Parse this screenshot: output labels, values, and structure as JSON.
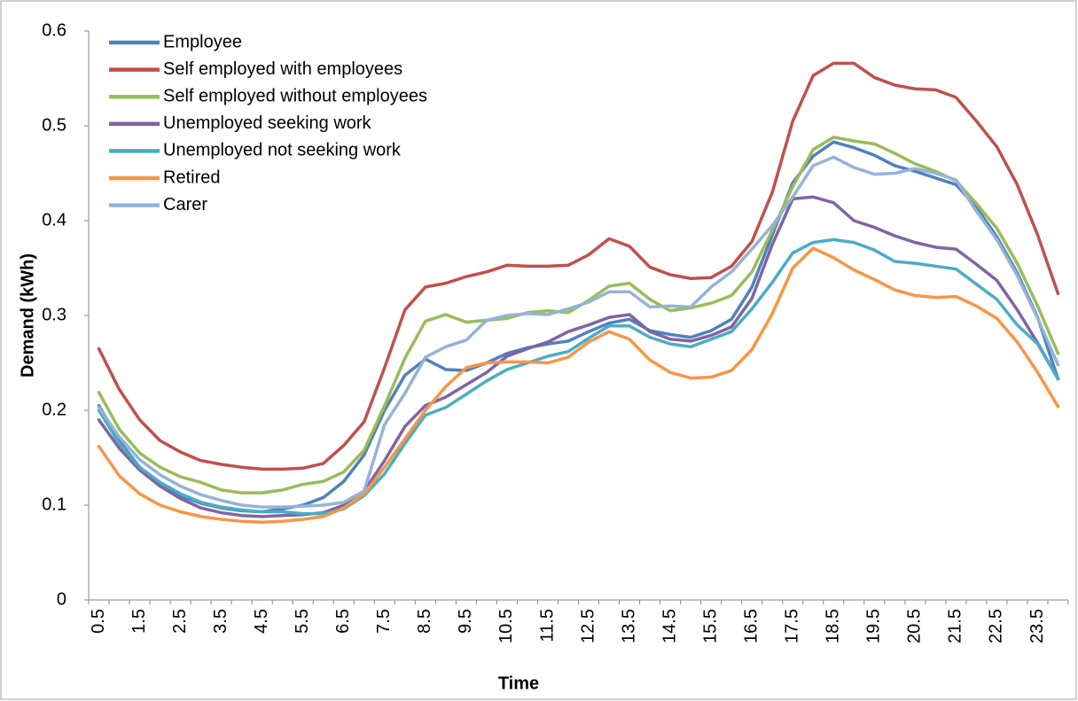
{
  "chart_data": {
    "type": "line",
    "xlabel": "Time",
    "ylabel": "Demand (kWh)",
    "categories": [
      "0.5",
      null,
      "1.5",
      null,
      "2.5",
      null,
      "3.5",
      null,
      "4.5",
      null,
      "5.5",
      null,
      "6.5",
      null,
      "7.5",
      null,
      "8.5",
      null,
      "9.5",
      null,
      "10.5",
      null,
      "11.5",
      null,
      "12.5",
      null,
      "13.5",
      null,
      "14.5",
      null,
      "15.5",
      null,
      "16.5",
      null,
      "17.5",
      null,
      "18.5",
      null,
      "19.5",
      null,
      "20.5",
      null,
      "21.5",
      null,
      "22.5",
      null,
      "23.5",
      null
    ],
    "ylim": [
      0,
      0.6
    ],
    "yticks": [
      0,
      0.1,
      0.2,
      0.3,
      0.4,
      0.5,
      0.6
    ],
    "legend": "top-left",
    "series": [
      {
        "name": "Employee",
        "color": "#4f81bd",
        "values": [
          0.205,
          0.168,
          0.14,
          0.122,
          0.11,
          0.102,
          0.097,
          0.094,
          0.093,
          0.096,
          0.1,
          0.108,
          0.125,
          0.153,
          0.2,
          0.237,
          0.254,
          0.243,
          0.242,
          0.25,
          0.26,
          0.266,
          0.27,
          0.273,
          0.283,
          0.292,
          0.296,
          0.284,
          0.28,
          0.277,
          0.284,
          0.296,
          0.33,
          0.385,
          0.44,
          0.468,
          0.483,
          0.477,
          0.469,
          0.458,
          0.452,
          0.445,
          0.438,
          0.414,
          0.383,
          0.345,
          0.298,
          0.233
        ]
      },
      {
        "name": "Self employed with employees",
        "color": "#c0504d",
        "values": [
          0.265,
          0.222,
          0.19,
          0.168,
          0.156,
          0.147,
          0.143,
          0.14,
          0.138,
          0.138,
          0.139,
          0.144,
          0.163,
          0.188,
          0.245,
          0.306,
          0.33,
          0.334,
          0.341,
          0.346,
          0.353,
          0.352,
          0.352,
          0.353,
          0.364,
          0.381,
          0.373,
          0.351,
          0.343,
          0.339,
          0.34,
          0.352,
          0.378,
          0.43,
          0.505,
          0.553,
          0.566,
          0.566,
          0.551,
          0.543,
          0.539,
          0.538,
          0.53,
          0.505,
          0.478,
          0.438,
          0.385,
          0.323
        ]
      },
      {
        "name": "Self employed without employees",
        "color": "#9bbb59",
        "values": [
          0.219,
          0.18,
          0.155,
          0.14,
          0.13,
          0.124,
          0.116,
          0.113,
          0.113,
          0.116,
          0.122,
          0.125,
          0.135,
          0.158,
          0.205,
          0.255,
          0.294,
          0.301,
          0.293,
          0.295,
          0.297,
          0.303,
          0.305,
          0.303,
          0.316,
          0.331,
          0.334,
          0.317,
          0.305,
          0.308,
          0.313,
          0.321,
          0.346,
          0.39,
          0.436,
          0.475,
          0.488,
          0.484,
          0.481,
          0.471,
          0.46,
          0.452,
          0.442,
          0.418,
          0.392,
          0.355,
          0.31,
          0.26
        ]
      },
      {
        "name": "Unemployed seeking work",
        "color": "#8064a2",
        "values": [
          0.19,
          0.16,
          0.137,
          0.12,
          0.107,
          0.097,
          0.092,
          0.089,
          0.088,
          0.089,
          0.09,
          0.092,
          0.1,
          0.115,
          0.147,
          0.183,
          0.205,
          0.214,
          0.227,
          0.24,
          0.257,
          0.265,
          0.272,
          0.283,
          0.29,
          0.298,
          0.301,
          0.283,
          0.275,
          0.273,
          0.279,
          0.288,
          0.318,
          0.375,
          0.423,
          0.425,
          0.419,
          0.4,
          0.393,
          0.384,
          0.377,
          0.372,
          0.37,
          0.354,
          0.337,
          0.306,
          0.271,
          0.233
        ]
      },
      {
        "name": "Unemployed not seeking work",
        "color": "#4bacc6",
        "values": [
          0.2,
          0.165,
          0.14,
          0.124,
          0.112,
          0.103,
          0.098,
          0.095,
          0.093,
          0.093,
          0.091,
          0.091,
          0.096,
          0.11,
          0.133,
          0.165,
          0.195,
          0.203,
          0.217,
          0.231,
          0.243,
          0.25,
          0.257,
          0.262,
          0.276,
          0.289,
          0.289,
          0.277,
          0.27,
          0.267,
          0.275,
          0.283,
          0.307,
          0.335,
          0.366,
          0.377,
          0.38,
          0.377,
          0.369,
          0.357,
          0.355,
          0.352,
          0.349,
          0.333,
          0.317,
          0.29,
          0.27,
          0.233
        ]
      },
      {
        "name": "Retired",
        "color": "#f79646",
        "values": [
          0.162,
          0.131,
          0.112,
          0.1,
          0.093,
          0.088,
          0.085,
          0.083,
          0.082,
          0.083,
          0.085,
          0.088,
          0.097,
          0.112,
          0.14,
          0.17,
          0.2,
          0.225,
          0.245,
          0.25,
          0.251,
          0.251,
          0.25,
          0.256,
          0.272,
          0.283,
          0.275,
          0.253,
          0.24,
          0.234,
          0.235,
          0.242,
          0.264,
          0.302,
          0.35,
          0.371,
          0.361,
          0.348,
          0.338,
          0.327,
          0.321,
          0.319,
          0.32,
          0.31,
          0.297,
          0.272,
          0.24,
          0.204
        ]
      },
      {
        "name": "Carer",
        "color": "#95b3d7",
        "values": [
          0.203,
          0.172,
          0.148,
          0.132,
          0.12,
          0.111,
          0.105,
          0.1,
          0.098,
          0.098,
          0.099,
          0.1,
          0.103,
          0.115,
          0.185,
          0.218,
          0.256,
          0.267,
          0.274,
          0.295,
          0.3,
          0.302,
          0.301,
          0.307,
          0.314,
          0.325,
          0.325,
          0.309,
          0.31,
          0.309,
          0.33,
          0.346,
          0.37,
          0.395,
          0.425,
          0.458,
          0.467,
          0.456,
          0.449,
          0.45,
          0.455,
          0.45,
          0.443,
          0.41,
          0.38,
          0.342,
          0.297,
          0.248
        ]
      }
    ]
  }
}
